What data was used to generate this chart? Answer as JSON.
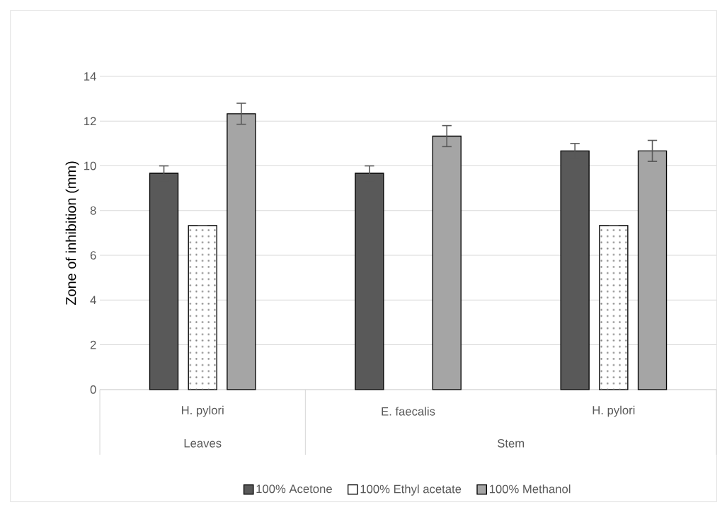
{
  "chart_data": {
    "type": "bar",
    "ylabel": "Zone of inhibition (mm)",
    "categories": [
      "H. pylori",
      "E. faecalis",
      "H. pylori"
    ],
    "annotations": [
      "Leaves",
      "Stem"
    ],
    "series": [
      {
        "name": "100% Acetone",
        "color": "#595959",
        "values": [
          9.67,
          9.67,
          10.67
        ],
        "errors": [
          0.33,
          0.33,
          0.33
        ]
      },
      {
        "name": "100% Ethyl acetate",
        "color": "#ffffff",
        "values": [
          7.33,
          null,
          7.33
        ],
        "errors": [
          0,
          null,
          0
        ]
      },
      {
        "name": "100% Methanol",
        "color": "#a5a5a5",
        "values": [
          12.33,
          11.33,
          10.67
        ],
        "errors": [
          0.47,
          0.47,
          0.47
        ]
      }
    ],
    "ylim": [
      0,
      14
    ],
    "yticks": [
      0,
      2,
      4,
      6,
      8,
      10,
      12,
      14
    ],
    "grid": "y",
    "legend": "bottom"
  }
}
